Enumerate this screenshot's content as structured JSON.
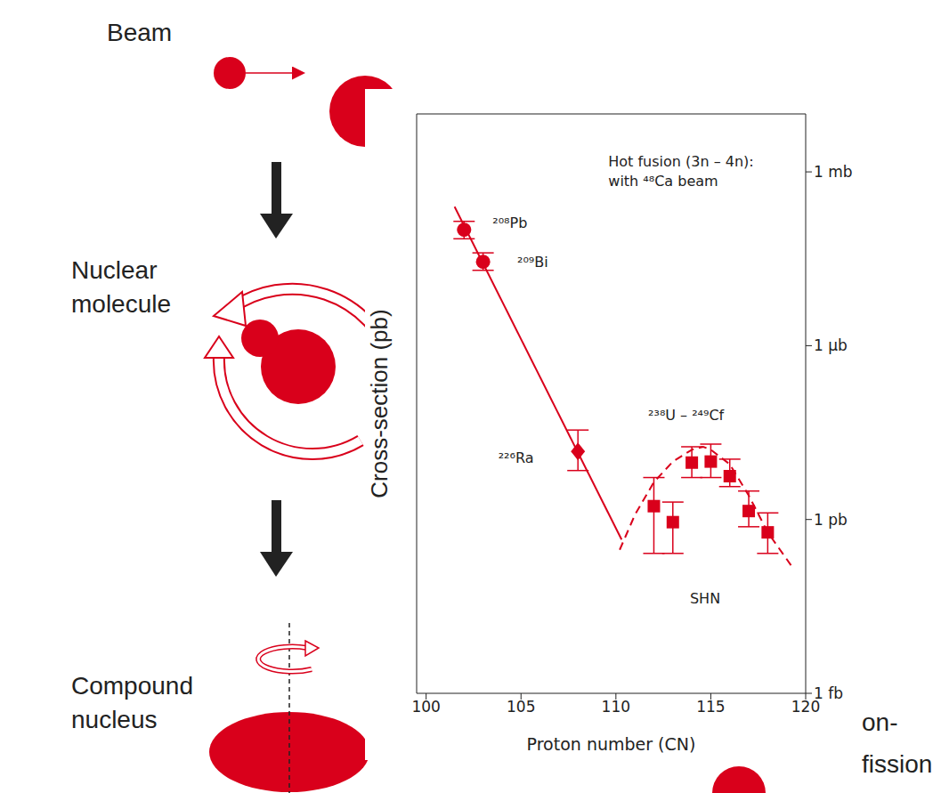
{
  "diagram": {
    "stages": [
      "Beam",
      "Nuclear molecule",
      "Compound nucleus"
    ],
    "outcome": [
      "on-",
      "fission"
    ]
  },
  "chart_data": {
    "type": "scatter",
    "x_label": "Proton number (CN)",
    "y_label": "Cross-section (pb)",
    "log": "y",
    "xlim": [
      99.5,
      120
    ],
    "xticks": [
      100,
      105,
      110,
      115,
      120
    ],
    "ylim": [
      0.001,
      10000000
    ],
    "yticks": [
      {
        "value": 0.001,
        "label": "1 fb"
      },
      {
        "value": 1,
        "label": "1 pb"
      },
      {
        "value": 1000,
        "label": "1 μb"
      },
      {
        "value": 1000000,
        "label": "1 mb"
      }
    ],
    "color": "#d9001b",
    "series": [
      {
        "type": "line",
        "line_style": "solid",
        "color": "#d9001b",
        "x": [
          101.5,
          110.3
        ],
        "values": [
          250000,
          0.45
        ]
      },
      {
        "type": "line",
        "line_style": "dashed",
        "color": "#d9001b",
        "x": [
          110.2,
          111,
          112,
          113,
          114,
          114.6,
          115,
          116,
          117,
          118,
          119.3
        ],
        "values": [
          0.3,
          1.2,
          4.4,
          10,
          16,
          18,
          16,
          9,
          2.6,
          0.6,
          0.15
        ]
      },
      {
        "type": "scatter",
        "marker": "circle",
        "color": "#d9001b",
        "x": [
          102,
          103
        ],
        "values": [
          100000,
          28000
        ],
        "error_low": [
          70000,
          20000
        ],
        "error_high": [
          140000,
          40000
        ]
      },
      {
        "type": "scatter",
        "marker": "diamond",
        "color": "#d9001b",
        "x": [
          108
        ],
        "values": [
          15
        ],
        "error_low": [
          7
        ],
        "error_high": [
          35
        ]
      },
      {
        "type": "scatter",
        "marker": "square",
        "color": "#d9001b",
        "x": [
          112,
          113,
          114,
          115,
          116,
          117,
          118
        ],
        "values": [
          1.7,
          0.9,
          9.6,
          10,
          5.6,
          1.4,
          0.6
        ],
        "error_low": [
          0.26,
          0.26,
          5.3,
          5.3,
          3.7,
          0.75,
          0.26
        ],
        "error_high": [
          5.3,
          2.0,
          18,
          20,
          11,
          3.1,
          1.3
        ]
      }
    ],
    "annotations": [
      {
        "text": "Hot fusion (3n – 4n):",
        "x": 109.6,
        "y": 1500000
      },
      {
        "text": "with ⁴⁸Ca beam",
        "x": 109.6,
        "y": 700000
      },
      {
        "text": "²⁰⁸Pb",
        "x": 103.5,
        "y": 130000
      },
      {
        "text": "²⁰⁹Bi",
        "x": 104.8,
        "y": 28000
      },
      {
        "text": "²²⁶Ra",
        "x": 103.8,
        "y": 11.5
      },
      {
        "text": "²³⁸U – ²⁴⁹Cf",
        "x": 111.7,
        "y": 63
      },
      {
        "text": "SHN",
        "x": 113.9,
        "y": 0.044
      }
    ]
  }
}
